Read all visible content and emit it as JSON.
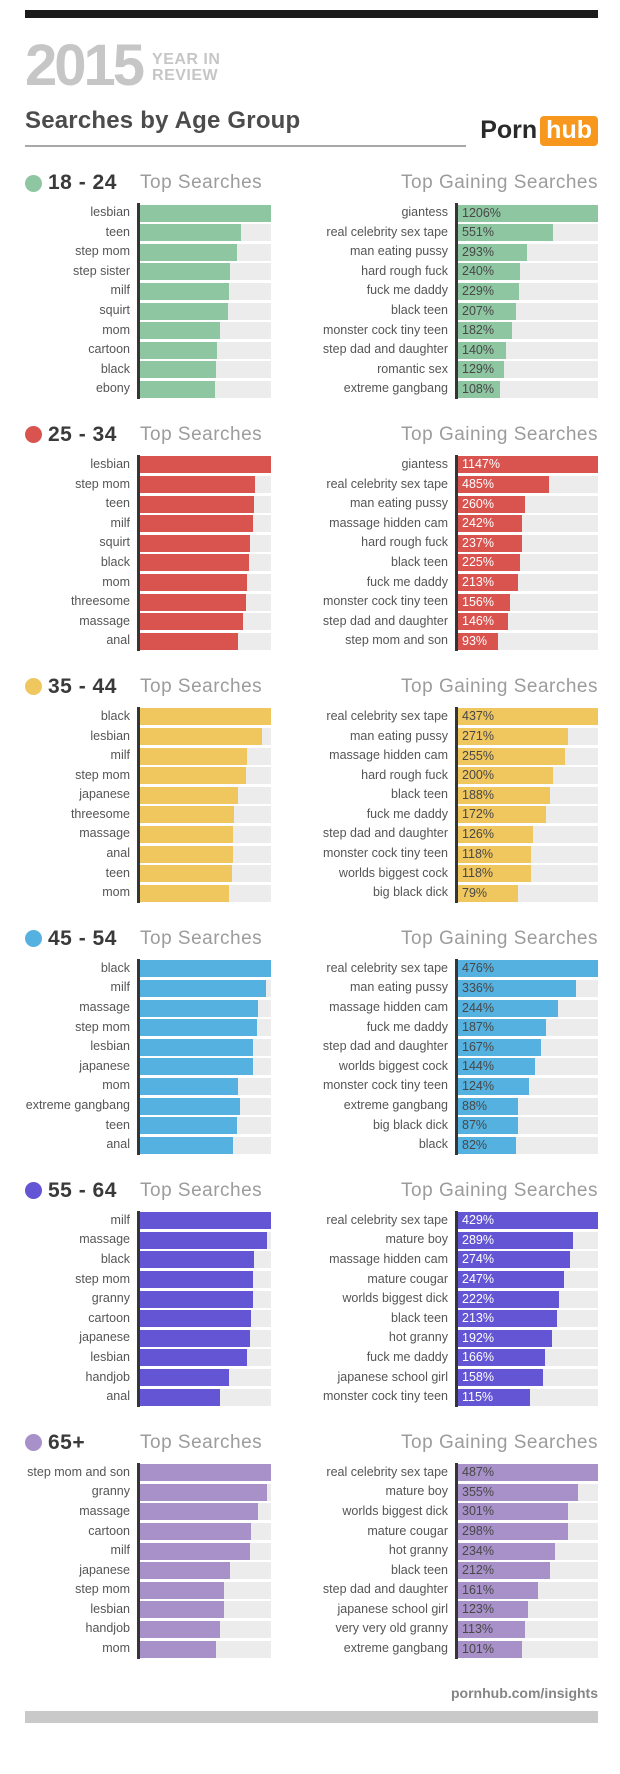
{
  "header": {
    "year": "2015",
    "subtitle_line1": "YEAR IN",
    "subtitle_line2": "REVIEW",
    "title": "Searches by Age Group",
    "logo_text_1": "Porn",
    "logo_text_2": "hub"
  },
  "footer": {
    "link": "pornhub.com/insights"
  },
  "colors": {
    "topbar": "#1b1b1b",
    "bottombar": "#c9c9c9",
    "brand": "#c6c6c6",
    "title": "#4c4c4c",
    "heading": "#9c9c9c",
    "label": "#555555",
    "track": "#ececec",
    "axis": "#353535",
    "orange": "#f7971d"
  },
  "sections": [
    {
      "age": "18 - 24",
      "color": "#8ec6a2",
      "value_label_color": "#474747",
      "left_title": "Top Searches",
      "right_title": "Top Gaining Searches",
      "top_searches": [
        {
          "term": "lesbian",
          "share": 1.0
        },
        {
          "term": "teen",
          "share": 0.77
        },
        {
          "term": "step mom",
          "share": 0.74
        },
        {
          "term": "step sister",
          "share": 0.69
        },
        {
          "term": "milf",
          "share": 0.68
        },
        {
          "term": "squirt",
          "share": 0.67
        },
        {
          "term": "mom",
          "share": 0.61
        },
        {
          "term": "cartoon",
          "share": 0.59
        },
        {
          "term": "black",
          "share": 0.58
        },
        {
          "term": "ebony",
          "share": 0.57
        }
      ],
      "top_gaining": [
        {
          "term": "giantess",
          "pct": "1206%"
        },
        {
          "term": "real celebrity sex tape",
          "pct": "551%"
        },
        {
          "term": "man eating pussy",
          "pct": "293%"
        },
        {
          "term": "hard rough fuck",
          "pct": "240%"
        },
        {
          "term": "fuck me daddy",
          "pct": "229%"
        },
        {
          "term": "black teen",
          "pct": "207%"
        },
        {
          "term": "monster cock tiny teen",
          "pct": "182%"
        },
        {
          "term": "step dad and daughter",
          "pct": "140%"
        },
        {
          "term": "romantic sex",
          "pct": "129%"
        },
        {
          "term": "extreme gangbang",
          "pct": "108%"
        }
      ]
    },
    {
      "age": "25 - 34",
      "color": "#d9534f",
      "value_label_color": "#ffffff",
      "left_title": "Top Searches",
      "right_title": "Top Gaining Searches",
      "top_searches": [
        {
          "term": "lesbian",
          "share": 1.0
        },
        {
          "term": "step mom",
          "share": 0.88
        },
        {
          "term": "teen",
          "share": 0.87
        },
        {
          "term": "milf",
          "share": 0.86
        },
        {
          "term": "squirt",
          "share": 0.84
        },
        {
          "term": "black",
          "share": 0.83
        },
        {
          "term": "mom",
          "share": 0.82
        },
        {
          "term": "threesome",
          "share": 0.81
        },
        {
          "term": "massage",
          "share": 0.79
        },
        {
          "term": "anal",
          "share": 0.75
        }
      ],
      "top_gaining": [
        {
          "term": "giantess",
          "pct": "1147%"
        },
        {
          "term": "real celebrity sex tape",
          "pct": "485%"
        },
        {
          "term": "man eating pussy",
          "pct": "260%"
        },
        {
          "term": "massage hidden cam",
          "pct": "242%"
        },
        {
          "term": "hard rough fuck",
          "pct": "237%"
        },
        {
          "term": "black teen",
          "pct": "225%"
        },
        {
          "term": "fuck me daddy",
          "pct": "213%"
        },
        {
          "term": "monster cock tiny teen",
          "pct": "156%"
        },
        {
          "term": "step dad and daughter",
          "pct": "146%"
        },
        {
          "term": "step mom and son",
          "pct": "93%"
        }
      ]
    },
    {
      "age": "35 - 44",
      "color": "#f0c75f",
      "value_label_color": "#474747",
      "left_title": "Top Searches",
      "right_title": "Top Gaining Searches",
      "top_searches": [
        {
          "term": "black",
          "share": 1.0
        },
        {
          "term": "lesbian",
          "share": 0.93
        },
        {
          "term": "milf",
          "share": 0.82
        },
        {
          "term": "step mom",
          "share": 0.81
        },
        {
          "term": "japanese",
          "share": 0.75
        },
        {
          "term": "threesome",
          "share": 0.72
        },
        {
          "term": "massage",
          "share": 0.71
        },
        {
          "term": "anal",
          "share": 0.71
        },
        {
          "term": "teen",
          "share": 0.7
        },
        {
          "term": "mom",
          "share": 0.68
        }
      ],
      "top_gaining": [
        {
          "term": "real celebrity sex tape",
          "pct": "437%"
        },
        {
          "term": "man eating pussy",
          "pct": "271%"
        },
        {
          "term": "massage hidden cam",
          "pct": "255%"
        },
        {
          "term": "hard rough fuck",
          "pct": "200%"
        },
        {
          "term": "black teen",
          "pct": "188%"
        },
        {
          "term": "fuck me daddy",
          "pct": "172%"
        },
        {
          "term": "step dad and daughter",
          "pct": "126%"
        },
        {
          "term": "monster cock tiny teen",
          "pct": "118%"
        },
        {
          "term": "worlds biggest cock",
          "pct": "118%"
        },
        {
          "term": "big black dick",
          "pct": "79%"
        }
      ]
    },
    {
      "age": "45 - 54",
      "color": "#55b2e0",
      "value_label_color": "#474747",
      "left_title": "Top Searches",
      "right_title": "Top Gaining Searches",
      "top_searches": [
        {
          "term": "black",
          "share": 1.0
        },
        {
          "term": "milf",
          "share": 0.96
        },
        {
          "term": "massage",
          "share": 0.9
        },
        {
          "term": "step mom",
          "share": 0.89
        },
        {
          "term": "lesbian",
          "share": 0.86
        },
        {
          "term": "japanese",
          "share": 0.86
        },
        {
          "term": "mom",
          "share": 0.75
        },
        {
          "term": "extreme gangbang",
          "share": 0.76
        },
        {
          "term": "teen",
          "share": 0.74
        },
        {
          "term": "anal",
          "share": 0.71
        }
      ],
      "top_gaining": [
        {
          "term": "real celebrity sex tape",
          "pct": "476%"
        },
        {
          "term": "man eating pussy",
          "pct": "336%"
        },
        {
          "term": "massage hidden cam",
          "pct": "244%"
        },
        {
          "term": "fuck me daddy",
          "pct": "187%"
        },
        {
          "term": "step dad and daughter",
          "pct": "167%"
        },
        {
          "term": "worlds biggest cock",
          "pct": "144%"
        },
        {
          "term": "monster cock tiny teen",
          "pct": "124%"
        },
        {
          "term": "extreme gangbang",
          "pct": "88%"
        },
        {
          "term": "big black dick",
          "pct": "87%"
        },
        {
          "term": "black",
          "pct": "82%"
        }
      ]
    },
    {
      "age": "55 - 64",
      "color": "#6355d4",
      "value_label_color": "#ffffff",
      "left_title": "Top Searches",
      "right_title": "Top Gaining Searches",
      "top_searches": [
        {
          "term": "milf",
          "share": 1.0
        },
        {
          "term": "massage",
          "share": 0.97
        },
        {
          "term": "black",
          "share": 0.87
        },
        {
          "term": "step mom",
          "share": 0.86
        },
        {
          "term": "granny",
          "share": 0.86
        },
        {
          "term": "cartoon",
          "share": 0.85
        },
        {
          "term": "japanese",
          "share": 0.84
        },
        {
          "term": "lesbian",
          "share": 0.82
        },
        {
          "term": "handjob",
          "share": 0.68
        },
        {
          "term": "anal",
          "share": 0.61
        }
      ],
      "top_gaining": [
        {
          "term": "real celebrity sex tape",
          "pct": "429%"
        },
        {
          "term": "mature boy",
          "pct": "289%"
        },
        {
          "term": "massage hidden cam",
          "pct": "274%"
        },
        {
          "term": "mature cougar",
          "pct": "247%"
        },
        {
          "term": "worlds biggest dick",
          "pct": "222%"
        },
        {
          "term": "black teen",
          "pct": "213%"
        },
        {
          "term": "hot granny",
          "pct": "192%"
        },
        {
          "term": "fuck me daddy",
          "pct": "166%"
        },
        {
          "term": "japanese school girl",
          "pct": "158%"
        },
        {
          "term": "monster cock tiny teen",
          "pct": "115%"
        }
      ]
    },
    {
      "age": "65+",
      "color": "#a891c9",
      "value_label_color": "#474747",
      "left_title": "Top Searches",
      "right_title": "Top Gaining Searches",
      "top_searches": [
        {
          "term": "step mom and son",
          "share": 1.0
        },
        {
          "term": "granny",
          "share": 0.97
        },
        {
          "term": "massage",
          "share": 0.9
        },
        {
          "term": "cartoon",
          "share": 0.85
        },
        {
          "term": "milf",
          "share": 0.84
        },
        {
          "term": "japanese",
          "share": 0.69
        },
        {
          "term": "step mom",
          "share": 0.64
        },
        {
          "term": "lesbian",
          "share": 0.64
        },
        {
          "term": "handjob",
          "share": 0.61
        },
        {
          "term": "mom",
          "share": 0.58
        }
      ],
      "top_gaining": [
        {
          "term": "real celebrity sex tape",
          "pct": "487%"
        },
        {
          "term": "mature boy",
          "pct": "355%"
        },
        {
          "term": "worlds biggest dick",
          "pct": "301%"
        },
        {
          "term": "mature cougar",
          "pct": "298%"
        },
        {
          "term": "hot granny",
          "pct": "234%"
        },
        {
          "term": "black teen",
          "pct": "212%"
        },
        {
          "term": "step dad and daughter",
          "pct": "161%"
        },
        {
          "term": "japanese school girl",
          "pct": "123%"
        },
        {
          "term": "very very old granny",
          "pct": "113%"
        },
        {
          "term": "extreme gangbang",
          "pct": "101%"
        }
      ]
    }
  ],
  "chart_data": [
    {
      "type": "bar",
      "group": "18 - 24",
      "title": "Top Searches",
      "orientation": "horizontal",
      "color": "#8ec6a2",
      "values_unit": "relative_bar_length",
      "categories": [
        "lesbian",
        "teen",
        "step mom",
        "step sister",
        "milf",
        "squirt",
        "mom",
        "cartoon",
        "black",
        "ebony"
      ],
      "values": [
        1.0,
        0.77,
        0.74,
        0.69,
        0.68,
        0.67,
        0.61,
        0.59,
        0.58,
        0.57
      ]
    },
    {
      "type": "bar",
      "group": "18 - 24",
      "title": "Top Gaining Searches",
      "orientation": "horizontal",
      "color": "#8ec6a2",
      "values_unit": "percent_gain",
      "categories": [
        "giantess",
        "real celebrity sex tape",
        "man eating pussy",
        "hard rough fuck",
        "fuck me daddy",
        "black teen",
        "monster cock tiny teen",
        "step dad and daughter",
        "romantic sex",
        "extreme gangbang"
      ],
      "values": [
        1206,
        551,
        293,
        240,
        229,
        207,
        182,
        140,
        129,
        108
      ]
    },
    {
      "type": "bar",
      "group": "25 - 34",
      "title": "Top Searches",
      "orientation": "horizontal",
      "color": "#d9534f",
      "values_unit": "relative_bar_length",
      "categories": [
        "lesbian",
        "step mom",
        "teen",
        "milf",
        "squirt",
        "black",
        "mom",
        "threesome",
        "massage",
        "anal"
      ],
      "values": [
        1.0,
        0.88,
        0.87,
        0.86,
        0.84,
        0.83,
        0.82,
        0.81,
        0.79,
        0.75
      ]
    },
    {
      "type": "bar",
      "group": "25 - 34",
      "title": "Top Gaining Searches",
      "orientation": "horizontal",
      "color": "#d9534f",
      "values_unit": "percent_gain",
      "categories": [
        "giantess",
        "real celebrity sex tape",
        "man eating pussy",
        "massage hidden cam",
        "hard rough fuck",
        "black teen",
        "fuck me daddy",
        "monster cock tiny teen",
        "step dad and daughter",
        "step mom and son"
      ],
      "values": [
        1147,
        485,
        260,
        242,
        237,
        225,
        213,
        156,
        146,
        93
      ]
    },
    {
      "type": "bar",
      "group": "35 - 44",
      "title": "Top Searches",
      "orientation": "horizontal",
      "color": "#f0c75f",
      "values_unit": "relative_bar_length",
      "categories": [
        "black",
        "lesbian",
        "milf",
        "step mom",
        "japanese",
        "threesome",
        "massage",
        "anal",
        "teen",
        "mom"
      ],
      "values": [
        1.0,
        0.93,
        0.82,
        0.81,
        0.75,
        0.72,
        0.71,
        0.71,
        0.7,
        0.68
      ]
    },
    {
      "type": "bar",
      "group": "35 - 44",
      "title": "Top Gaining Searches",
      "orientation": "horizontal",
      "color": "#f0c75f",
      "values_unit": "percent_gain",
      "categories": [
        "real celebrity sex tape",
        "man eating pussy",
        "massage hidden cam",
        "hard rough fuck",
        "black teen",
        "fuck me daddy",
        "step dad and daughter",
        "monster cock tiny teen",
        "worlds biggest cock",
        "big black dick"
      ],
      "values": [
        437,
        271,
        255,
        200,
        188,
        172,
        126,
        118,
        118,
        79
      ]
    },
    {
      "type": "bar",
      "group": "45 - 54",
      "title": "Top Searches",
      "orientation": "horizontal",
      "color": "#55b2e0",
      "values_unit": "relative_bar_length",
      "categories": [
        "black",
        "milf",
        "massage",
        "step mom",
        "lesbian",
        "japanese",
        "mom",
        "extreme gangbang",
        "teen",
        "anal"
      ],
      "values": [
        1.0,
        0.96,
        0.9,
        0.89,
        0.86,
        0.86,
        0.75,
        0.76,
        0.74,
        0.71
      ]
    },
    {
      "type": "bar",
      "group": "45 - 54",
      "title": "Top Gaining Searches",
      "orientation": "horizontal",
      "color": "#55b2e0",
      "values_unit": "percent_gain",
      "categories": [
        "real celebrity sex tape",
        "man eating pussy",
        "massage hidden cam",
        "fuck me daddy",
        "step dad and daughter",
        "worlds biggest cock",
        "monster cock tiny teen",
        "extreme gangbang",
        "big black dick",
        "black"
      ],
      "values": [
        476,
        336,
        244,
        187,
        167,
        144,
        124,
        88,
        87,
        82
      ]
    },
    {
      "type": "bar",
      "group": "55 - 64",
      "title": "Top Searches",
      "orientation": "horizontal",
      "color": "#6355d4",
      "values_unit": "relative_bar_length",
      "categories": [
        "milf",
        "massage",
        "black",
        "step mom",
        "granny",
        "cartoon",
        "japanese",
        "lesbian",
        "handjob",
        "anal"
      ],
      "values": [
        1.0,
        0.97,
        0.87,
        0.86,
        0.86,
        0.85,
        0.84,
        0.82,
        0.68,
        0.61
      ]
    },
    {
      "type": "bar",
      "group": "55 - 64",
      "title": "Top Gaining Searches",
      "orientation": "horizontal",
      "color": "#6355d4",
      "values_unit": "percent_gain",
      "categories": [
        "real celebrity sex tape",
        "mature boy",
        "massage hidden cam",
        "mature cougar",
        "worlds biggest dick",
        "black teen",
        "hot granny",
        "fuck me daddy",
        "japanese school girl",
        "monster cock tiny teen"
      ],
      "values": [
        429,
        289,
        274,
        247,
        222,
        213,
        192,
        166,
        158,
        115
      ]
    },
    {
      "type": "bar",
      "group": "65+",
      "title": "Top Searches",
      "orientation": "horizontal",
      "color": "#a891c9",
      "values_unit": "relative_bar_length",
      "categories": [
        "step mom and son",
        "granny",
        "massage",
        "cartoon",
        "milf",
        "japanese",
        "step mom",
        "lesbian",
        "handjob",
        "mom"
      ],
      "values": [
        1.0,
        0.97,
        0.9,
        0.85,
        0.84,
        0.69,
        0.64,
        0.64,
        0.61,
        0.58
      ]
    },
    {
      "type": "bar",
      "group": "65+",
      "title": "Top Gaining Searches",
      "orientation": "horizontal",
      "color": "#a891c9",
      "values_unit": "percent_gain",
      "categories": [
        "real celebrity sex tape",
        "mature boy",
        "worlds biggest dick",
        "mature cougar",
        "hot granny",
        "black teen",
        "step dad and daughter",
        "japanese school girl",
        "very very old granny",
        "extreme gangbang"
      ],
      "values": [
        487,
        355,
        301,
        298,
        234,
        212,
        161,
        123,
        113,
        101
      ]
    }
  ]
}
